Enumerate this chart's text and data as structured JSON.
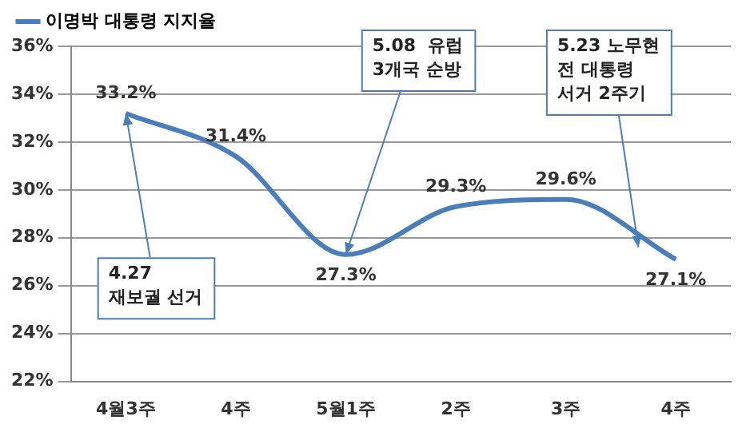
{
  "chart_data": {
    "type": "line",
    "categories": [
      "4월3주",
      "4주",
      "5월1주",
      "2주",
      "3주",
      "4주"
    ],
    "series": [
      {
        "name": "이명박 대통령 지지율",
        "color": "#4a7ebb",
        "values": [
          33.2,
          31.4,
          27.3,
          29.3,
          29.6,
          27.1
        ]
      }
    ],
    "ylim": [
      22,
      36
    ],
    "yticks": [
      {
        "value": 22,
        "label": "22%"
      },
      {
        "value": 24,
        "label": "24%"
      },
      {
        "value": 26,
        "label": "26%"
      },
      {
        "value": 28,
        "label": "28%"
      },
      {
        "value": 30,
        "label": "30%"
      },
      {
        "value": 32,
        "label": "32%"
      },
      {
        "value": 34,
        "label": "34%"
      },
      {
        "value": 36,
        "label": "36%"
      }
    ],
    "value_labels": [
      "33.2%",
      "31.4%",
      "27.3%",
      "29.3%",
      "29.6%",
      "27.1%"
    ],
    "annotations": [
      {
        "text": "4.27\n재보궐 선거",
        "x": "4월3주",
        "y": 33.2
      },
      {
        "text": "5.08  유럽\n3개국 순방",
        "x": "5월1주",
        "y": 27.3
      },
      "5.23 노무현\n전 대통령\n서거 2주기"
    ],
    "grid": "y",
    "legend": "top left",
    "marker": "none",
    "line_style": "solid"
  }
}
